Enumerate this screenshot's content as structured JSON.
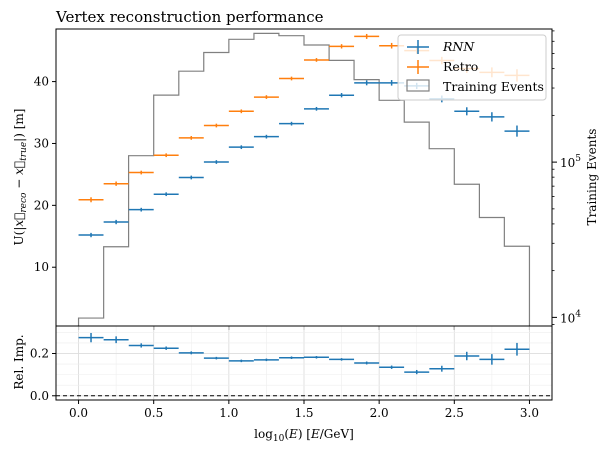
{
  "chart_data": [
    {
      "type": "line",
      "title": "Vertex reconstruction performance",
      "xlabel": "",
      "ylabel": "U(|x_reco − x_true|) [m]",
      "ylabel_right": "Training Events",
      "xlim": [
        -0.15,
        3.15
      ],
      "ylim": [
        0.5,
        48.5
      ],
      "yticks": [
        "10",
        "20",
        "30",
        "40"
      ],
      "y2_scale": "log",
      "y2lim": [
        8800,
        720000
      ],
      "y2ticks": [
        "10^4",
        "10^5"
      ],
      "legend_position": "top-right",
      "bin_half_width": 0.083,
      "x": [
        0.083,
        0.25,
        0.417,
        0.583,
        0.75,
        0.917,
        1.083,
        1.25,
        1.417,
        1.583,
        1.75,
        1.917,
        2.083,
        2.25,
        2.417,
        2.583,
        2.75,
        2.917
      ],
      "series": [
        {
          "name": "RNN",
          "style": "errorbar",
          "color": "#1f77b4",
          "values": [
            15.2,
            17.3,
            19.3,
            21.8,
            24.5,
            27.0,
            29.4,
            31.1,
            33.2,
            35.6,
            37.8,
            39.8,
            39.8,
            39.3,
            37.2,
            35.2,
            34.3,
            32.0
          ],
          "yerr": [
            0.35,
            0.35,
            0.3,
            0.3,
            0.3,
            0.3,
            0.3,
            0.3,
            0.3,
            0.3,
            0.35,
            0.4,
            0.45,
            0.5,
            0.55,
            0.65,
            0.75,
            0.9
          ]
        },
        {
          "name": "Retro",
          "style": "errorbar",
          "color": "#ff7f0e",
          "values": [
            20.9,
            23.5,
            25.3,
            28.1,
            30.9,
            32.9,
            35.2,
            37.5,
            40.5,
            43.5,
            45.7,
            47.3,
            45.8,
            45.0,
            43.4,
            42.1,
            41.5,
            41.0
          ],
          "yerr": [
            0.4,
            0.35,
            0.3,
            0.3,
            0.3,
            0.3,
            0.3,
            0.3,
            0.3,
            0.3,
            0.35,
            0.4,
            0.45,
            0.5,
            0.6,
            0.7,
            0.8,
            1.0
          ]
        },
        {
          "name": "Training Events",
          "style": "step",
          "color": "#808080",
          "axis": "right",
          "bin_edges": [
            0.0,
            0.167,
            0.333,
            0.5,
            0.667,
            0.833,
            1.0,
            1.167,
            1.333,
            1.5,
            1.667,
            1.833,
            2.0,
            2.167,
            2.333,
            2.5,
            2.667,
            2.833,
            3.0
          ],
          "values": [
            9900,
            28500,
            110000,
            270000,
            385000,
            508000,
            618000,
            675000,
            652000,
            568000,
            452000,
            340000,
            250000,
            181000,
            122000,
            72000,
            44000,
            28700
          ]
        }
      ]
    },
    {
      "type": "line",
      "title": "",
      "xlabel": "log10(E) [E/GeV]",
      "ylabel": "Rel. Imp.",
      "xlim": [
        -0.15,
        3.15
      ],
      "ylim": [
        -0.02,
        0.33
      ],
      "xticks": [
        "0.0",
        "0.5",
        "1.0",
        "1.5",
        "2.0",
        "2.5",
        "3.0"
      ],
      "yticks": [
        "0.0",
        "0.2"
      ],
      "grid": true,
      "reference_line": 0.0,
      "x": [
        0.083,
        0.25,
        0.417,
        0.583,
        0.75,
        0.917,
        1.083,
        1.25,
        1.417,
        1.583,
        1.75,
        1.917,
        2.083,
        2.25,
        2.417,
        2.583,
        2.75,
        2.917
      ],
      "series": [
        {
          "name": "",
          "style": "errorbar",
          "color": "#1f77b4",
          "values": [
            0.275,
            0.265,
            0.238,
            0.225,
            0.203,
            0.178,
            0.165,
            0.17,
            0.18,
            0.182,
            0.172,
            0.155,
            0.135,
            0.112,
            0.128,
            0.188,
            0.172,
            0.22
          ],
          "yerr": [
            0.022,
            0.016,
            0.01,
            0.008,
            0.007,
            0.006,
            0.006,
            0.006,
            0.006,
            0.006,
            0.006,
            0.007,
            0.008,
            0.01,
            0.014,
            0.02,
            0.025,
            0.03
          ]
        }
      ]
    }
  ]
}
